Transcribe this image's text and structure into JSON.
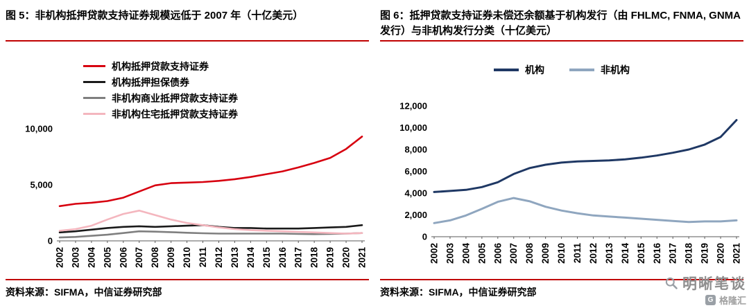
{
  "accent": {
    "separator_color": "#c00000"
  },
  "watermark": {
    "title": "明晰笔谈",
    "brand": "格隆汇",
    "logo_letter": "G"
  },
  "panels": [
    {
      "title": "图 5：非机构抵押贷款支持证券规模远低于 2007 年（十亿美元）",
      "source": "资料来源：SIFMA，中信证券研究部",
      "chart_data": {
        "type": "line",
        "x": [
          2002,
          2003,
          2004,
          2005,
          2006,
          2007,
          2008,
          2009,
          2010,
          2011,
          2012,
          2013,
          2014,
          2015,
          2016,
          2017,
          2018,
          2019,
          2020,
          2021
        ],
        "ylim": [
          0,
          10000
        ],
        "yticks": [
          0,
          5000,
          10000
        ],
        "grid": false,
        "legend_position": "top-left-vertical",
        "xlabel": "",
        "ylabel": "",
        "series": [
          {
            "name": "机构抵押贷款支持证券",
            "color": "#d7000f",
            "values": [
              3100,
              3300,
              3400,
              3550,
              3850,
              4400,
              4950,
              5150,
              5200,
              5250,
              5350,
              5500,
              5700,
              5950,
              6200,
              6550,
              6950,
              7400,
              8200,
              9300
            ]
          },
          {
            "name": "机构抵押担保债券",
            "color": "#1a1a1a",
            "values": [
              750,
              850,
              1000,
              1150,
              1250,
              1300,
              1250,
              1300,
              1350,
              1400,
              1250,
              1150,
              1150,
              1100,
              1100,
              1100,
              1150,
              1200,
              1250,
              1400
            ]
          },
          {
            "name": "非机构商业抵押贷款支持证券",
            "color": "#7f7f7f",
            "values": [
              300,
              350,
              450,
              550,
              700,
              850,
              820,
              780,
              720,
              680,
              650,
              650,
              650,
              650,
              650,
              620,
              600,
              620,
              650,
              700
            ]
          },
          {
            "name": "非机构住宅抵押贷款支持证券",
            "color": "#f4b6be",
            "values": [
              900,
              1050,
              1350,
              1900,
              2400,
              2700,
              2300,
              1900,
              1600,
              1400,
              1200,
              1050,
              950,
              900,
              850,
              800,
              750,
              700,
              650,
              700
            ]
          }
        ]
      }
    },
    {
      "title": "图 6：抵押贷款支持证券未偿还余额基于机构发行（由 FHLMC, FNMA, GNMA 发行）与非机构发行分类（十亿美元）",
      "source": "资料来源：SIFMA，中信证券研究部",
      "chart_data": {
        "type": "line",
        "x": [
          2002,
          2003,
          2004,
          2005,
          2006,
          2007,
          2008,
          2009,
          2010,
          2011,
          2012,
          2013,
          2014,
          2015,
          2016,
          2017,
          2018,
          2019,
          2020,
          2021
        ],
        "ylim": [
          0,
          12000
        ],
        "yticks": [
          0,
          2000,
          4000,
          6000,
          8000,
          10000,
          12000
        ],
        "grid": false,
        "legend_position": "top-center-horizontal",
        "xlabel": "",
        "ylabel": "",
        "series": [
          {
            "name": "机构",
            "color": "#1f3864",
            "values": [
              4100,
              4200,
              4300,
              4550,
              5000,
              5750,
              6300,
              6600,
              6800,
              6900,
              6950,
              7000,
              7100,
              7250,
              7450,
              7700,
              8000,
              8450,
              9150,
              10700
            ]
          },
          {
            "name": "非机构",
            "color": "#8fa6bf",
            "values": [
              1250,
              1500,
              1950,
              2550,
              3200,
              3550,
              3250,
              2750,
              2400,
              2150,
              1950,
              1850,
              1750,
              1650,
              1550,
              1450,
              1350,
              1400,
              1400,
              1500
            ]
          }
        ]
      }
    }
  ]
}
